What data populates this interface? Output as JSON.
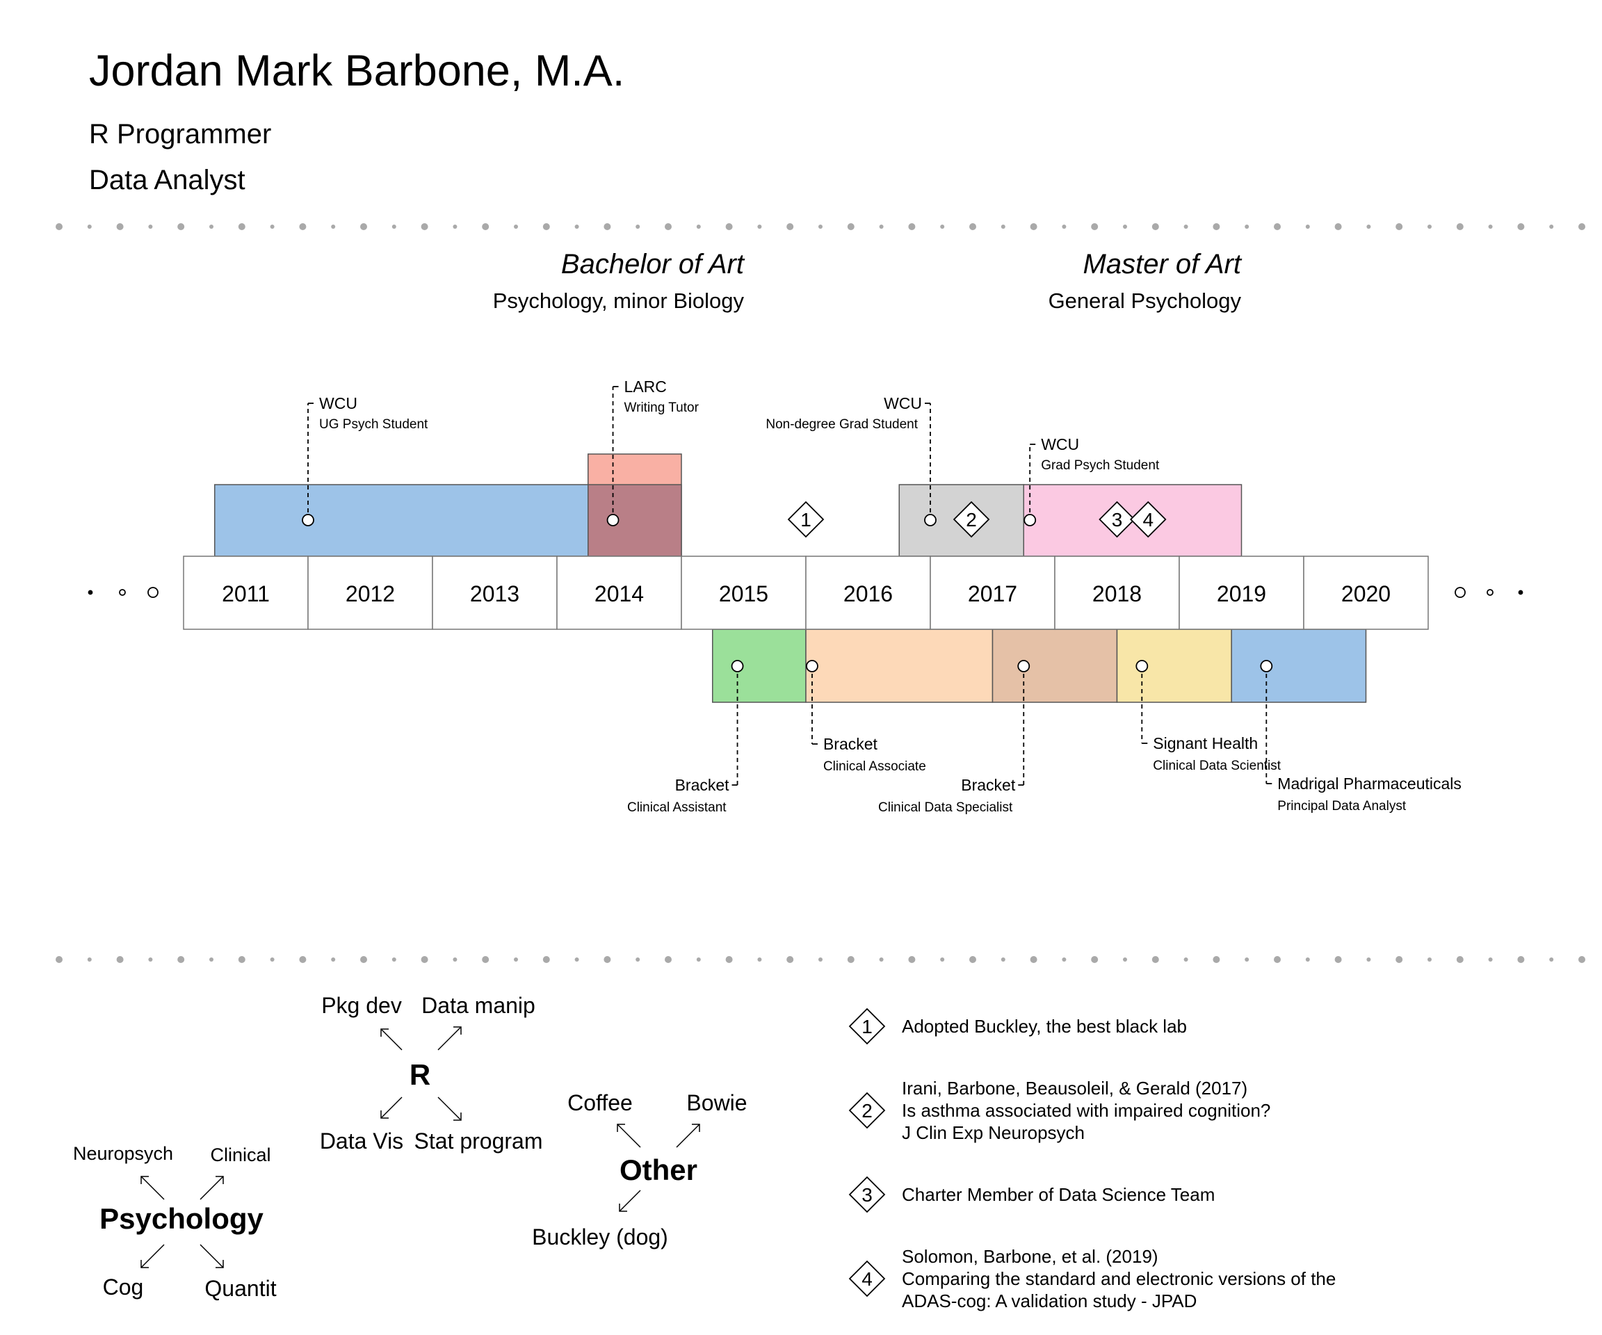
{
  "header": {
    "name": "Jordan Mark Barbone, M.A.",
    "roles": [
      "R Programmer",
      "Data Analyst"
    ]
  },
  "degrees": [
    {
      "title": "Bachelor of Art",
      "subtitle": "Psychology, minor Biology"
    },
    {
      "title": "Master of Art",
      "subtitle": "General Psychology"
    }
  ],
  "timeline": {
    "years": [
      "2011",
      "2012",
      "2013",
      "2014",
      "2015",
      "2016",
      "2017",
      "2018",
      "2019",
      "2020"
    ],
    "education": [
      {
        "org": "WCU",
        "role": "UG Psych Student",
        "start": 2011.25,
        "end": 2014.25,
        "dot": 2012.0,
        "color": "#9dc3e8"
      },
      {
        "org": "LARC",
        "role": "Writing Tutor",
        "start": 2014.25,
        "end": 2015.0,
        "dot": 2014.45,
        "color": "#f8a79a"
      },
      {
        "org": "WCU",
        "role": "Non-degree Grad Student",
        "start": 2016.75,
        "end": 2017.75,
        "dot": 2017.0,
        "color": "#d3d3d3"
      },
      {
        "org": "WCU",
        "role": "Grad Psych Student",
        "start": 2017.75,
        "end": 2019.5,
        "dot": 2017.8,
        "color": "#fbc9e2"
      }
    ],
    "employment": [
      {
        "org": "Bracket",
        "role": "Clinical Assistant",
        "start": 2015.25,
        "end": 2016.0,
        "dot": 2015.45,
        "color": "#9be09a"
      },
      {
        "org": "Bracket",
        "role": "Clinical Associate",
        "start": 2016.0,
        "end": 2017.5,
        "dot": 2016.05,
        "color": "#fdd9b8"
      },
      {
        "org": "Bracket",
        "role": "Clinical Data Specialist",
        "start": 2017.5,
        "end": 2018.5,
        "dot": 2017.75,
        "color": "#e5c1a7"
      },
      {
        "org": "Signant Health",
        "role": "Clinical Data Scientist",
        "start": 2018.5,
        "end": 2019.42,
        "dot": 2018.7,
        "color": "#f8e6a8"
      },
      {
        "org": "Madrigal Pharmaceuticals",
        "role": "Principal Data Analyst",
        "start": 2019.42,
        "end": 2020.5,
        "dot": 2019.7,
        "color": "#9dc3e8"
      }
    ],
    "milestones": [
      {
        "num": "1",
        "at": 2016.0
      },
      {
        "num": "2",
        "at": 2017.33
      },
      {
        "num": "3",
        "at": 2018.5
      },
      {
        "num": "4",
        "at": 2018.75
      }
    ]
  },
  "skills": [
    {
      "head": "Psychology",
      "items": [
        "Neuropsych",
        "Clinical",
        "Cog",
        "Quantit"
      ]
    },
    {
      "head": "R",
      "items": [
        "Pkg dev",
        "Data manip",
        "Data Vis",
        "Stat program"
      ]
    },
    {
      "head": "Other",
      "items": [
        "Coffee",
        "Bowie",
        "Buckley (dog)"
      ]
    }
  ],
  "legend": [
    {
      "num": "1",
      "lines": [
        "Adopted Buckley, the best black lab"
      ]
    },
    {
      "num": "2",
      "lines": [
        "Irani, Barbone, Beausoleil, & Gerald (2017)",
        "Is asthma associated with impaired cognition?",
        "J Clin Exp Neuropsych"
      ]
    },
    {
      "num": "3",
      "lines": [
        "Charter Member of Data Science Team"
      ]
    },
    {
      "num": "4",
      "lines": [
        "Solomon, Barbone, et al. (2019)",
        "Comparing the standard and electronic versions of the",
        "ADAS-cog:  A validation study - JPAD"
      ]
    }
  ]
}
